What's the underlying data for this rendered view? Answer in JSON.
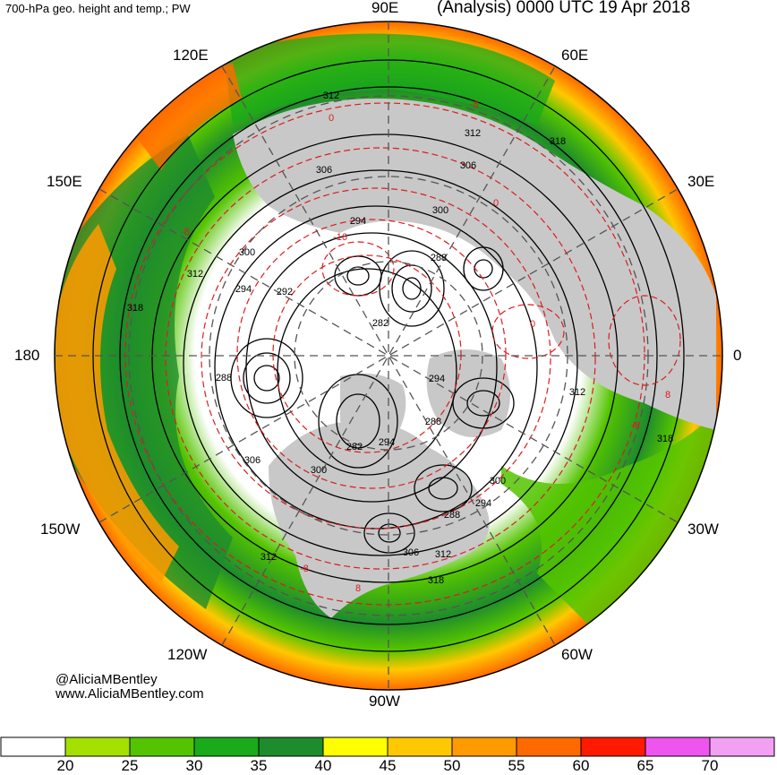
{
  "header": {
    "left_title": "700-hPa geo. height and temp.; PW",
    "right_title": "(Analysis) 0000 UTC 19 Apr 2018"
  },
  "longitude_labels": {
    "e90": "90E",
    "e120": "120E",
    "e60": "60E",
    "e150": "150E",
    "e30": "30E",
    "d180": "180",
    "d0": "0",
    "w150": "150W",
    "w30": "30W",
    "w120": "120W",
    "w60": "60W",
    "w90": "90W"
  },
  "contour_labels": {
    "height": [
      "312",
      "312",
      "318",
      "306",
      "306",
      "300",
      "294",
      "288",
      "300",
      "294",
      "312",
      "318",
      "292",
      "282",
      "288",
      "294",
      "288",
      "282",
      "294",
      "306",
      "300",
      "300",
      "294",
      "288",
      "312",
      "306",
      "312",
      "318",
      "318",
      "312"
    ],
    "temperature": [
      "-8",
      "-16",
      "0",
      "-8",
      "0",
      "8",
      "0",
      "-8",
      "8",
      "-8"
    ]
  },
  "credits": {
    "handle": "@AliciaMBentley",
    "site": "www.AliciaMBentley.com"
  },
  "colorbar": {
    "labels": [
      "20",
      "25",
      "30",
      "35",
      "40",
      "45",
      "50",
      "55",
      "60",
      "65",
      "70"
    ],
    "colors": [
      "#ffffff",
      "#a4e000",
      "#54c400",
      "#19ab1a",
      "#1e8c2c",
      "#ffff00",
      "#ffc800",
      "#ff9a00",
      "#ff6a00",
      "#ff1a00",
      "#ee55ee",
      "#f2a0f2"
    ]
  },
  "map": {
    "ocean_low_pw": "#ffffff",
    "land_gray": "#c8c8c8",
    "height_contour": "#000000",
    "temp_contour": "#dd1c1c"
  }
}
